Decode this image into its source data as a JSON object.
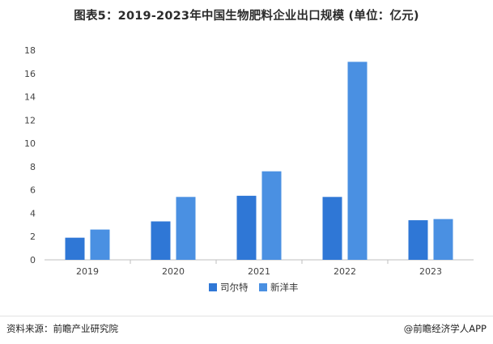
{
  "title": "图表5：2019-2023年中国生物肥料企业出口规模 (单位：亿元)",
  "footer": {
    "source": "资料来源：前瞻产业研究院",
    "brand": "@前瞻经济学人APP"
  },
  "colors": {
    "series1": "#2f77d6",
    "series2": "#4a90e2",
    "axis": "#bfbfbf",
    "tick_text": "#444444"
  },
  "chart_data": {
    "type": "bar",
    "title": "图表5：2019-2023年中国生物肥料企业出口规模 (单位：亿元)",
    "categories": [
      "2019",
      "2020",
      "2021",
      "2022",
      "2023"
    ],
    "series": [
      {
        "name": "司尔特",
        "values": [
          1.9,
          3.3,
          5.5,
          5.4,
          3.4
        ]
      },
      {
        "name": "新洋丰",
        "values": [
          2.6,
          5.4,
          7.6,
          17.0,
          3.5
        ]
      }
    ],
    "ylim": [
      0,
      18
    ],
    "yticks": [
      0,
      2,
      4,
      6,
      8,
      10,
      12,
      14,
      16,
      18
    ],
    "grid": false,
    "legend": "bottom-center"
  }
}
